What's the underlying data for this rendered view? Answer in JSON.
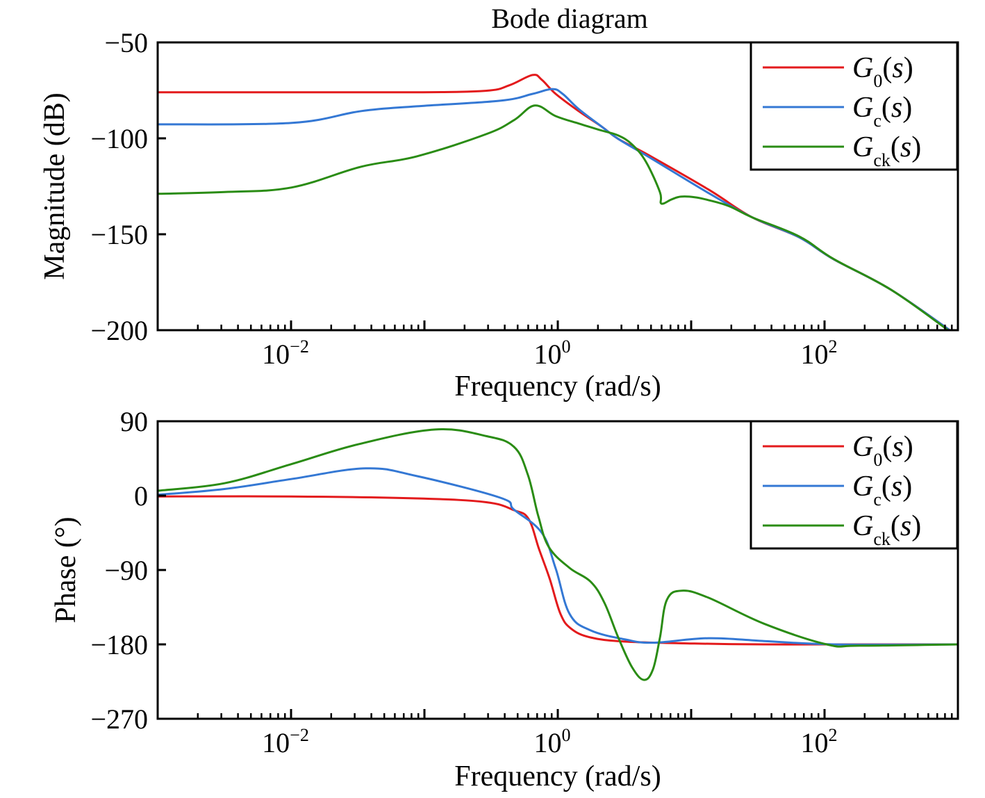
{
  "colors": {
    "G0": "#e31a1c",
    "Gc": "#3478d4",
    "Gck": "#2a8c14",
    "axis": "#000000"
  },
  "chart_data": [
    {
      "type": "line",
      "title": "Bode diagram",
      "xlabel": "Frequency (rad/s)",
      "ylabel": "Magnitude (dB)",
      "xscale": "log",
      "xlim_log10": [
        -3,
        3
      ],
      "ylim": [
        -200,
        -50
      ],
      "yticks": [
        -50,
        -100,
        -150,
        -200
      ],
      "ytick_labels": [
        "−50",
        "−100",
        "−150",
        "−200"
      ],
      "xticks_log10": [
        -2,
        0,
        2
      ],
      "xtick_labels": [
        {
          "base": "10",
          "exp": "−2"
        },
        {
          "base": "10",
          "exp": "0"
        },
        {
          "base": "10",
          "exp": "2"
        }
      ],
      "legend_position": "top-right",
      "legend": [
        {
          "key": "G0",
          "main": "G",
          "sub": "0",
          "arg": "(s)"
        },
        {
          "key": "Gc",
          "main": "G",
          "sub": "c",
          "arg": "(s)"
        },
        {
          "key": "Gck",
          "main": "G",
          "sub": "ck",
          "arg": "(s)"
        }
      ],
      "series": [
        {
          "key": "G0",
          "name": "G0(s)",
          "log10_x": [
            -3.0,
            -2.0,
            -1.06,
            -0.54,
            -0.365,
            -0.19,
            -0.12,
            -0.016,
            0.156,
            0.333,
            0.453,
            0.677,
            1.13,
            1.458,
            1.807,
            2.068,
            2.5,
            3.0
          ],
          "y": [
            -76,
            -76,
            -76,
            -75.2,
            -72.4,
            -67,
            -69.5,
            -76.8,
            -85.8,
            -94.1,
            -100.3,
            -108.6,
            -126.7,
            -141.2,
            -151.5,
            -163,
            -179,
            -203
          ]
        },
        {
          "key": "Gc",
          "name": "Gc(s)",
          "log10_x": [
            -3.0,
            -2.0,
            -1.474,
            -1.057,
            -0.432,
            -0.188,
            -0.042,
            0.036,
            0.156,
            0.333,
            0.453,
            0.677,
            1.13,
            1.458,
            1.807,
            2.068,
            2.5,
            3.0
          ],
          "y": [
            -92.7,
            -92,
            -85.8,
            -83.3,
            -80.4,
            -76.8,
            -74.3,
            -76.8,
            -84.7,
            -94.1,
            -100.3,
            -109.5,
            -128.5,
            -141.2,
            -151.5,
            -163,
            -179,
            -203
          ]
        },
        {
          "key": "Gck",
          "name": "Gck(s)",
          "log10_x": [
            -3.0,
            -2.5,
            -1.995,
            -1.474,
            -1.057,
            -0.536,
            -0.328,
            -0.172,
            -0.016,
            0.156,
            0.333,
            0.453,
            0.557,
            0.661,
            0.766,
            0.776,
            0.854,
            0.922,
            1.026,
            1.13,
            1.286,
            1.458,
            1.807,
            2.068,
            2.5,
            2.927
          ],
          "y": [
            -128.9,
            -128,
            -125.6,
            -114.8,
            -109.4,
            -97.8,
            -90.5,
            -82.9,
            -88.4,
            -92.3,
            -96,
            -98.5,
            -103.2,
            -112.2,
            -128.1,
            -134,
            -131.8,
            -130.4,
            -130.7,
            -132.2,
            -135.4,
            -141.2,
            -151,
            -162.9,
            -179,
            -200
          ]
        }
      ]
    },
    {
      "type": "line",
      "title": "",
      "xlabel": "Frequency (rad/s)",
      "ylabel": "Phase (°)",
      "xscale": "log",
      "xlim_log10": [
        -3,
        3
      ],
      "ylim": [
        -270,
        90
      ],
      "yticks": [
        90,
        0,
        -90,
        -180,
        -270
      ],
      "ytick_labels": [
        "90",
        "0",
        "−90",
        "−180",
        "−270"
      ],
      "xticks_log10": [
        -2,
        0,
        2
      ],
      "xtick_labels": [
        {
          "base": "10",
          "exp": "−2"
        },
        {
          "base": "10",
          "exp": "0"
        },
        {
          "base": "10",
          "exp": "2"
        }
      ],
      "legend_position": "top-right",
      "legend": [
        {
          "key": "G0",
          "main": "G",
          "sub": "0",
          "arg": "(s)"
        },
        {
          "key": "Gc",
          "main": "G",
          "sub": "c",
          "arg": "(s)"
        },
        {
          "key": "Gck",
          "main": "G",
          "sub": "ck",
          "arg": "(s)"
        }
      ],
      "series": [
        {
          "key": "G0",
          "name": "G0(s)",
          "log10_x": [
            -3.0,
            -2.0,
            -1.057,
            -0.536,
            -0.328,
            -0.22,
            -0.14,
            -0.06,
            0.02,
            0.1,
            0.245,
            0.505,
            1.026,
            1.547,
            2.068,
            3.0
          ],
          "y": [
            -1,
            -1,
            -3.4,
            -8,
            -17.7,
            -28,
            -65,
            -101,
            -143,
            -161,
            -171.6,
            -176.6,
            -179,
            -180,
            -180,
            -180
          ]
        },
        {
          "key": "Gc",
          "name": "Gc(s)",
          "log10_x": [
            -3.0,
            -2.5,
            -2.0,
            -1.44,
            -1.057,
            -0.432,
            -0.328,
            -0.12,
            -0.016,
            0.088,
            0.245,
            0.505,
            0.714,
            1.13,
            1.547,
            2.068,
            3.0
          ],
          "y": [
            1,
            8,
            20,
            33,
            23.6,
            -2.5,
            -17,
            -45,
            -88,
            -143,
            -163,
            -174,
            -178,
            -172.5,
            -176,
            -180,
            -180
          ]
        },
        {
          "key": "Gck",
          "name": "Gck(s)",
          "log10_x": [
            -3.0,
            -2.5,
            -2.0,
            -1.5,
            -0.92,
            -0.536,
            -0.328,
            -0.224,
            -0.146,
            -0.068,
            0.088,
            0.245,
            0.349,
            0.453,
            0.557,
            0.646,
            0.714,
            0.766,
            0.818,
            0.932,
            1.13,
            1.547,
            2.016,
            2.26,
            3.0
          ],
          "y": [
            5.9,
            15,
            38,
            62,
            80,
            72,
            59,
            25,
            -25,
            -62,
            -87.5,
            -104,
            -129.5,
            -171.6,
            -207.7,
            -223,
            -210,
            -171.6,
            -126,
            -115,
            -123.6,
            -155,
            -180,
            -181.6,
            -180
          ]
        }
      ]
    }
  ]
}
